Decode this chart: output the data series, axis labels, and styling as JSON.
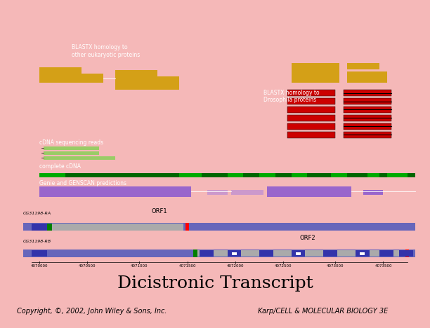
{
  "bg_color": "#f5b8b8",
  "main_panel_bg": "#000000",
  "bottom_panel_bg": "#cde8f5",
  "title": "Dicistronic Transcript",
  "title_fontsize": 18,
  "copyright_left": "Copyright, ©, 2002, John Wiley & Sons, Inc.",
  "copyright_right": "Karp/CELL & MOLECULAR BIOLOGY 3E",
  "copyright_fontsize": 7,
  "blastx_euk_label": "BLASTX homology to\nother eukaryotic proteins",
  "blastx_dro_label": "BLASTX homology to\nDrosophila proteins",
  "cdna_reads_label": "cDNA sequencing reads",
  "complete_cdna_label": "complete cDNA",
  "genie_label": "Genie and GENSCAN predictions",
  "orf1_label": "ORF1",
  "orf2_label": "ORF2",
  "cg_ra_label": "CG31198-RA",
  "cg_rb_label": "CG31198-RB",
  "axis_ticks": [
    "4070000",
    "4070500",
    "4071000",
    "4071500",
    "4072000",
    "4072500",
    "4073000",
    "4073500"
  ],
  "gold_color": "#d4a017",
  "red_color": "#cc0000",
  "green_color": "#00aa00",
  "light_green_color": "#99cc66",
  "purple_color": "#9966cc",
  "light_purple_color": "#cc99cc",
  "blue_purple_color": "#6666bb",
  "gray_color": "#aaaaaa",
  "dark_green_color": "#006600"
}
